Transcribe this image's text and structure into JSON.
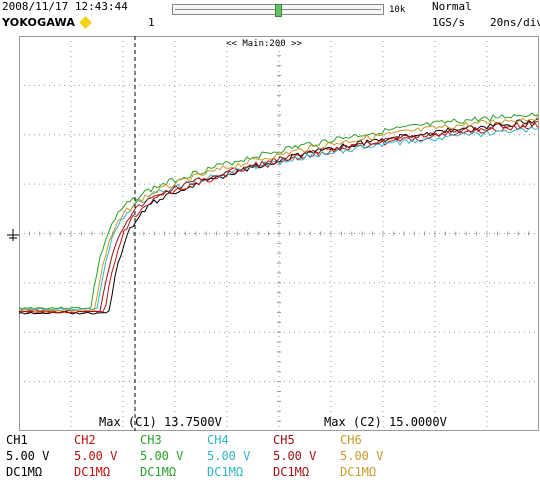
{
  "header": {
    "timestamp": "2008/11/17 12:43:44",
    "brand": "YOKOGAWA",
    "trigger_number": "1",
    "zoom_slider": {
      "max_label": "10k",
      "position_fraction": 0.5
    },
    "acquisition_mode": "Normal",
    "sample_rate": "1GS/s",
    "time_div": "20ns/div"
  },
  "screen": {
    "main_label": "<< Main:200 >>",
    "cursor_readout_1": "Max (C1)  13.7500V",
    "cursor_readout_2": "Max (C2)  15.0000V",
    "ground_marker": "ground-icon"
  },
  "colors": {
    "CH1": "#000000",
    "CH2": "#c01010",
    "CH3": "#2aa02a",
    "CH4": "#2fb6c8",
    "CH5": "#9a1010",
    "CH6": "#c89a28",
    "grid": "#9a9a9a",
    "cursor": "#000000"
  },
  "channels": [
    {
      "name": "CH1",
      "volts": "5.00 V",
      "coupling": "DC1MΩ",
      "color": "#000000"
    },
    {
      "name": "CH2",
      "volts": "5.00 V",
      "coupling": "DC1MΩ",
      "color": "#c01010"
    },
    {
      "name": "CH3",
      "volts": "5.00 V",
      "coupling": "DC1MΩ",
      "color": "#2aa02a"
    },
    {
      "name": "CH4",
      "volts": "5.00 V",
      "coupling": "DC1MΩ",
      "color": "#2fb6c8"
    },
    {
      "name": "CH5",
      "volts": "5.00 V",
      "coupling": "DC1MΩ",
      "color": "#9a1010"
    },
    {
      "name": "CH6",
      "volts": "5.00 V",
      "coupling": "DC1MΩ",
      "color": "#c89a28"
    }
  ]
}
